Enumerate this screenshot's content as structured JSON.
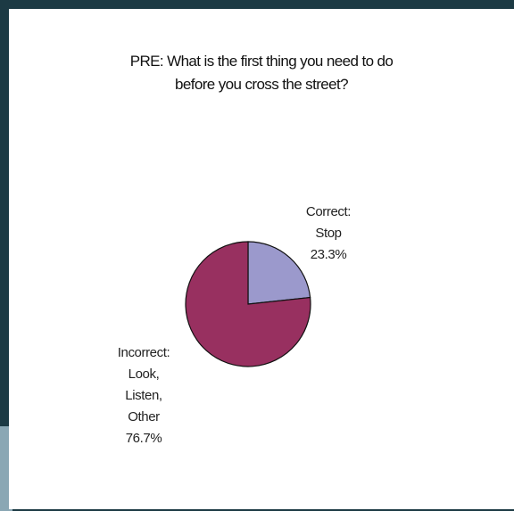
{
  "chart_data": {
    "type": "pie",
    "title_lines": [
      "PRE: What is the first thing you need to do",
      "before you cross the street?"
    ],
    "slices": [
      {
        "label_lines": [
          "Correct:",
          "Stop"
        ],
        "value": 23.3,
        "value_label": "23.3%",
        "color": "#9b99cc"
      },
      {
        "label_lines": [
          "Incorrect:",
          "Look,",
          "Listen,",
          "Other"
        ],
        "value": 76.7,
        "value_label": "76.7%",
        "color": "#983060"
      }
    ]
  },
  "colors": {
    "frame": "#1c3a44",
    "panel": "#ffffff",
    "outline": "#111111"
  }
}
